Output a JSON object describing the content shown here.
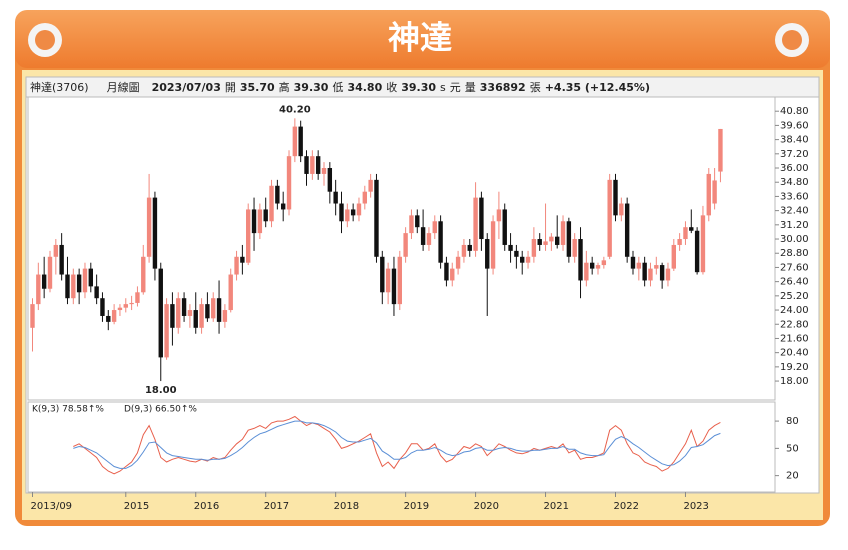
{
  "title": "神達",
  "header": [
    "神達(3706)",
    "月線圖",
    "2023/07/03",
    "開",
    "35.70",
    "高",
    "39.30",
    "低",
    "34.80",
    "收",
    "39.30",
    "s",
    "元",
    "量",
    "336892",
    "張",
    "+4.35 (+12.45%)"
  ],
  "chart_data": [
    {
      "type": "candlestick",
      "up_color": "#f2877c",
      "down_color": "#111111",
      "ylim": [
        16.4,
        42.0
      ],
      "yticks": [
        {
          "value": 40.8,
          "label": "40.80"
        },
        {
          "value": 39.6,
          "label": "39.60"
        },
        {
          "value": 38.4,
          "label": "38.40"
        },
        {
          "value": 37.2,
          "label": "37.20"
        },
        {
          "value": 36,
          "label": "36.00"
        },
        {
          "value": 34.8,
          "label": "34.80"
        },
        {
          "value": 33.6,
          "label": "33.60"
        },
        {
          "value": 32.4,
          "label": "32.40"
        },
        {
          "value": 31.2,
          "label": "31.20"
        },
        {
          "value": 30,
          "label": "30.00"
        },
        {
          "value": 28.8,
          "label": "28.80"
        },
        {
          "value": 27.6,
          "label": "27.60"
        },
        {
          "value": 26.4,
          "label": "26.40"
        },
        {
          "value": 25.2,
          "label": "25.20"
        },
        {
          "value": 24,
          "label": "24.00"
        },
        {
          "value": 22.8,
          "label": "22.80"
        },
        {
          "value": 21.6,
          "label": "21.60"
        },
        {
          "value": 20.4,
          "label": "20.40"
        },
        {
          "value": 19.2,
          "label": "19.20"
        },
        {
          "value": 18,
          "label": "18.00"
        }
      ],
      "xticks": [
        {
          "value": 0,
          "label": "2013/09"
        },
        {
          "value": 16,
          "label": "2015"
        },
        {
          "value": 28,
          "label": "2016"
        },
        {
          "value": 40,
          "label": "2017"
        },
        {
          "value": 52,
          "label": "2018"
        },
        {
          "value": 64,
          "label": "2019"
        },
        {
          "value": 76,
          "label": "2020"
        },
        {
          "value": 88,
          "label": "2021"
        },
        {
          "value": 100,
          "label": "2022"
        },
        {
          "value": 112,
          "label": "2023"
        }
      ],
      "annotations": [
        {
          "value": 40.2,
          "label": "40.20"
        },
        {
          "value": 18,
          "label": "18.00"
        }
      ],
      "ohlc": [
        [
          22.5,
          25,
          20.5,
          24.5
        ],
        [
          24.5,
          28,
          24,
          27
        ],
        [
          27,
          28.5,
          25,
          25.8
        ],
        [
          25.8,
          29,
          25.5,
          28.5
        ],
        [
          28.5,
          30,
          27,
          29.5
        ],
        [
          29.5,
          30.5,
          26.5,
          27
        ],
        [
          27,
          28.5,
          24.5,
          25
        ],
        [
          25,
          27.5,
          24.5,
          27
        ],
        [
          27,
          27.5,
          24.5,
          25.5
        ],
        [
          25.5,
          28,
          25,
          27.5
        ],
        [
          27.5,
          28,
          25.5,
          26
        ],
        [
          26,
          27,
          24.5,
          25
        ],
        [
          25,
          25.5,
          23,
          23.5
        ],
        [
          23.5,
          24,
          22.3,
          23
        ],
        [
          23,
          24.5,
          22.8,
          24
        ],
        [
          24,
          24.5,
          23.5,
          24.2
        ],
        [
          24.2,
          25,
          23.8,
          24.5
        ],
        [
          24.5,
          25.2,
          24,
          24.6
        ],
        [
          24.6,
          26,
          24.3,
          25.5
        ],
        [
          25.5,
          29.5,
          25.3,
          28.5
        ],
        [
          28.5,
          35.5,
          28,
          33.5
        ],
        [
          33.5,
          34,
          26.5,
          27.5
        ],
        [
          27.5,
          28,
          18,
          20
        ],
        [
          20,
          25,
          19.8,
          24.5
        ],
        [
          24.5,
          25.5,
          21,
          22.5
        ],
        [
          22.5,
          25.5,
          22,
          25
        ],
        [
          25,
          25.5,
          23,
          23.5
        ],
        [
          23.5,
          24.5,
          22.5,
          24
        ],
        [
          24,
          25.5,
          22,
          22.5
        ],
        [
          22.5,
          25,
          22,
          24.5
        ],
        [
          24.5,
          25.5,
          23,
          23.3
        ],
        [
          23.3,
          25.5,
          23,
          25
        ],
        [
          25,
          26.5,
          22,
          23
        ],
        [
          23,
          24.5,
          22.5,
          24
        ],
        [
          24,
          27.5,
          23.8,
          27
        ],
        [
          27,
          29,
          26.5,
          28.5
        ],
        [
          28.5,
          29.5,
          27,
          28
        ],
        [
          28,
          33,
          27.8,
          32.5
        ],
        [
          32.5,
          33.5,
          29,
          30.5
        ],
        [
          30.5,
          33,
          30,
          32.5
        ],
        [
          32.5,
          33.5,
          31,
          31.5
        ],
        [
          31.5,
          35,
          31,
          34.5
        ],
        [
          34.5,
          35,
          32.5,
          33
        ],
        [
          33,
          34,
          31.5,
          32.5
        ],
        [
          32.5,
          37.5,
          32,
          37
        ],
        [
          37,
          40.2,
          36.5,
          39.5
        ],
        [
          39.5,
          40,
          36.5,
          37
        ],
        [
          37,
          37.5,
          34.5,
          35.5
        ],
        [
          35.5,
          37.5,
          35,
          37
        ],
        [
          37,
          37.5,
          35,
          35.5
        ],
        [
          35.5,
          36.5,
          34.5,
          36
        ],
        [
          36,
          36.5,
          33,
          34
        ],
        [
          34,
          35,
          32,
          33
        ],
        [
          33,
          34,
          30.5,
          31.5
        ],
        [
          31.5,
          33,
          31,
          32.5
        ],
        [
          32.5,
          33,
          31.5,
          32
        ],
        [
          32,
          33.5,
          31.5,
          33
        ],
        [
          33,
          34.5,
          32.5,
          34
        ],
        [
          34,
          35.5,
          33.5,
          35
        ],
        [
          35,
          35.5,
          28,
          28.5
        ],
        [
          28.5,
          29,
          24.5,
          25.5
        ],
        [
          25.5,
          28,
          24.5,
          27.5
        ],
        [
          27.5,
          28.5,
          23.5,
          24.5
        ],
        [
          24.5,
          29,
          24,
          28.5
        ],
        [
          28.5,
          31,
          28,
          30.5
        ],
        [
          30.5,
          32.5,
          30,
          32
        ],
        [
          32,
          32.5,
          30.5,
          31
        ],
        [
          31,
          32.5,
          29,
          29.5
        ],
        [
          29.5,
          31,
          29,
          30.5
        ],
        [
          30.5,
          32,
          30,
          31.5
        ],
        [
          31.5,
          32,
          27.5,
          28
        ],
        [
          28,
          28.5,
          26,
          26.5
        ],
        [
          26.5,
          28,
          26,
          27.5
        ],
        [
          27.5,
          29,
          27,
          28.5
        ],
        [
          28.5,
          30,
          28,
          29.5
        ],
        [
          29.5,
          30,
          28.5,
          29
        ],
        [
          29,
          34.8,
          28.5,
          33.5
        ],
        [
          33.5,
          34,
          29,
          30
        ],
        [
          30,
          30.5,
          23.5,
          27.5
        ],
        [
          27.5,
          32,
          27,
          31.5
        ],
        [
          31.5,
          34,
          30,
          32.5
        ],
        [
          32.5,
          33,
          29,
          29.5
        ],
        [
          29.5,
          30.5,
          28,
          29
        ],
        [
          29,
          29.5,
          27.5,
          28.5
        ],
        [
          28.5,
          29,
          27,
          28
        ],
        [
          28,
          29,
          27.5,
          28.5
        ],
        [
          28.5,
          31,
          28,
          30
        ],
        [
          30,
          30.5,
          29,
          29.5
        ],
        [
          29.5,
          33,
          29,
          29.8
        ],
        [
          29.8,
          30.5,
          29,
          30.2
        ],
        [
          30.2,
          32,
          29.2,
          29.5
        ],
        [
          29.5,
          32,
          29,
          31.5
        ],
        [
          31.5,
          31.8,
          28,
          28.5
        ],
        [
          28.5,
          30.5,
          28,
          30
        ],
        [
          30,
          31,
          25,
          26.5
        ],
        [
          26.5,
          29,
          26,
          28
        ],
        [
          28,
          28.5,
          27,
          27.5
        ],
        [
          27.5,
          28,
          27,
          27.8
        ],
        [
          27.8,
          28.5,
          27.5,
          28.2
        ],
        [
          28.5,
          35.5,
          28.3,
          35
        ],
        [
          35,
          35.5,
          31.5,
          32
        ],
        [
          32,
          33.5,
          31.5,
          33
        ],
        [
          33,
          33.5,
          28,
          28.5
        ],
        [
          28.5,
          29,
          27,
          27.5
        ],
        [
          27.5,
          28.5,
          26.5,
          28
        ],
        [
          28,
          28.5,
          26,
          26.5
        ],
        [
          26.5,
          28,
          26,
          27.5
        ],
        [
          27.5,
          28.5,
          27,
          27.8
        ],
        [
          27.8,
          28,
          25.8,
          26.5
        ],
        [
          26.5,
          28,
          26,
          27.5
        ],
        [
          27.5,
          30,
          27.3,
          29.5
        ],
        [
          29.5,
          30.5,
          29,
          30
        ],
        [
          30,
          31.5,
          29.5,
          31
        ],
        [
          31,
          32.5,
          30.5,
          30.7
        ],
        [
          30.7,
          31,
          27,
          27.2
        ],
        [
          27.2,
          32.8,
          27,
          32
        ],
        [
          32,
          36,
          31.5,
          35.5
        ],
        [
          33,
          36,
          32.5,
          34.95
        ],
        [
          35.7,
          39.3,
          34.8,
          39.3
        ]
      ]
    },
    {
      "type": "line",
      "ylim": [
        2,
        101
      ],
      "yticks": [
        20,
        50,
        80
      ],
      "series": [
        {
          "name": "K(9,3) 78.58↑%",
          "color": "#e8604c",
          "values": [
            null,
            null,
            null,
            null,
            null,
            null,
            null,
            52,
            55,
            50,
            45,
            40,
            30,
            25,
            22,
            25,
            30,
            35,
            45,
            65,
            75,
            60,
            40,
            35,
            38,
            40,
            38,
            36,
            35,
            38,
            36,
            40,
            38,
            40,
            48,
            55,
            60,
            70,
            72,
            75,
            72,
            78,
            80,
            80,
            82,
            85,
            80,
            75,
            78,
            76,
            72,
            68,
            60,
            50,
            52,
            55,
            58,
            62,
            66,
            45,
            30,
            35,
            28,
            38,
            45,
            55,
            55,
            48,
            50,
            55,
            42,
            35,
            38,
            45,
            52,
            50,
            55,
            52,
            42,
            48,
            55,
            52,
            48,
            45,
            44,
            46,
            50,
            48,
            50,
            52,
            50,
            55,
            45,
            48,
            38,
            40,
            40,
            42,
            45,
            70,
            75,
            70,
            55,
            45,
            42,
            35,
            32,
            30,
            25,
            28,
            35,
            45,
            55,
            70,
            52,
            58,
            70,
            75,
            78.58
          ]
        },
        {
          "name": "D(9,3) 66.50↑%",
          "color": "#5b8fd6",
          "values": [
            null,
            null,
            null,
            null,
            null,
            null,
            null,
            50,
            52,
            51,
            48,
            45,
            40,
            35,
            30,
            28,
            28,
            31,
            37,
            46,
            56,
            57,
            51,
            45,
            42,
            41,
            40,
            39,
            38,
            38,
            37,
            38,
            38,
            39,
            42,
            46,
            51,
            57,
            62,
            66,
            68,
            71,
            74,
            76,
            78,
            80,
            80,
            78,
            78,
            77,
            75,
            72,
            68,
            62,
            58,
            57,
            57,
            59,
            61,
            56,
            47,
            43,
            38,
            38,
            40,
            45,
            48,
            48,
            49,
            51,
            48,
            44,
            42,
            43,
            46,
            47,
            50,
            51,
            48,
            48,
            50,
            51,
            50,
            48,
            47,
            47,
            48,
            48,
            49,
            50,
            50,
            52,
            49,
            49,
            45,
            43,
            42,
            42,
            43,
            52,
            60,
            63,
            60,
            55,
            51,
            46,
            41,
            37,
            33,
            31,
            32,
            36,
            42,
            51,
            52,
            54,
            59,
            64,
            66.5
          ]
        }
      ]
    }
  ]
}
